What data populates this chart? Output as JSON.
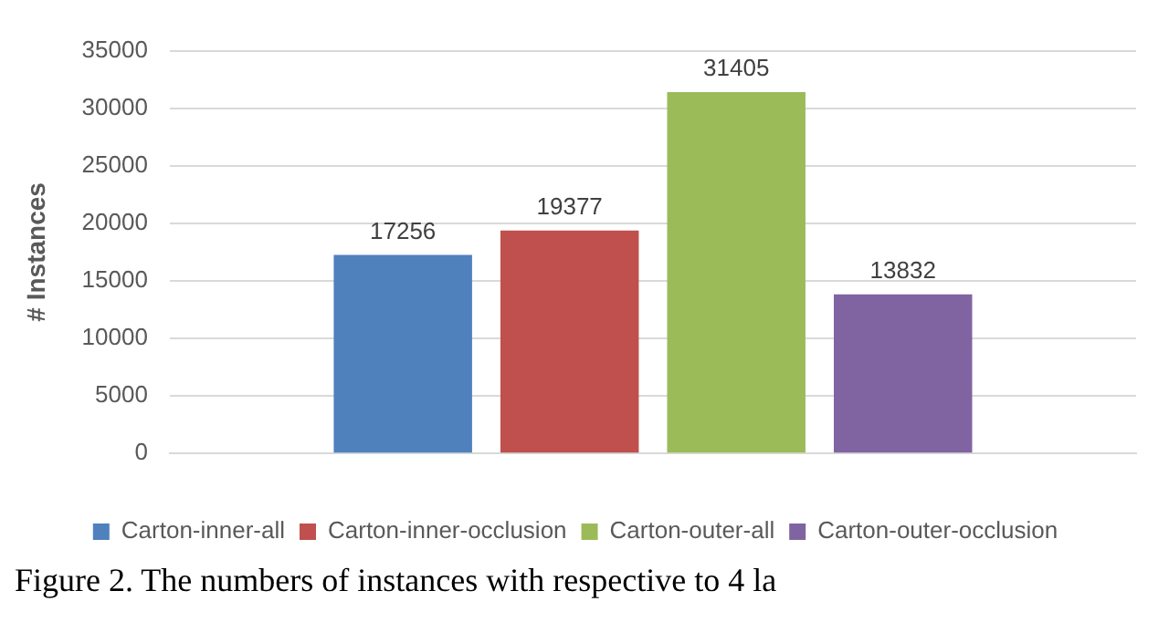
{
  "chart_data": {
    "type": "bar",
    "ylabel": "# Instances",
    "categories": [
      null
    ],
    "series": [
      {
        "name": "Carton-inner-all",
        "color": "#4f81bd",
        "values": [
          17256
        ]
      },
      {
        "name": "Carton-inner-occlusion",
        "color": "#c0504d",
        "values": [
          19377
        ]
      },
      {
        "name": "Carton-outer-all",
        "color": "#9bbb59",
        "values": [
          31405
        ]
      },
      {
        "name": "Carton-outer-occlusion",
        "color": "#8064a2",
        "values": [
          13832
        ]
      }
    ],
    "ylim": [
      0,
      35000
    ],
    "yticks": [
      0,
      5000,
      10000,
      15000,
      20000,
      25000,
      30000,
      35000
    ],
    "grid": "y",
    "legend": "bottom",
    "data_labels": true,
    "annotations": [
      "Figure 2. The numbers of instances with respective to 4 la"
    ]
  }
}
